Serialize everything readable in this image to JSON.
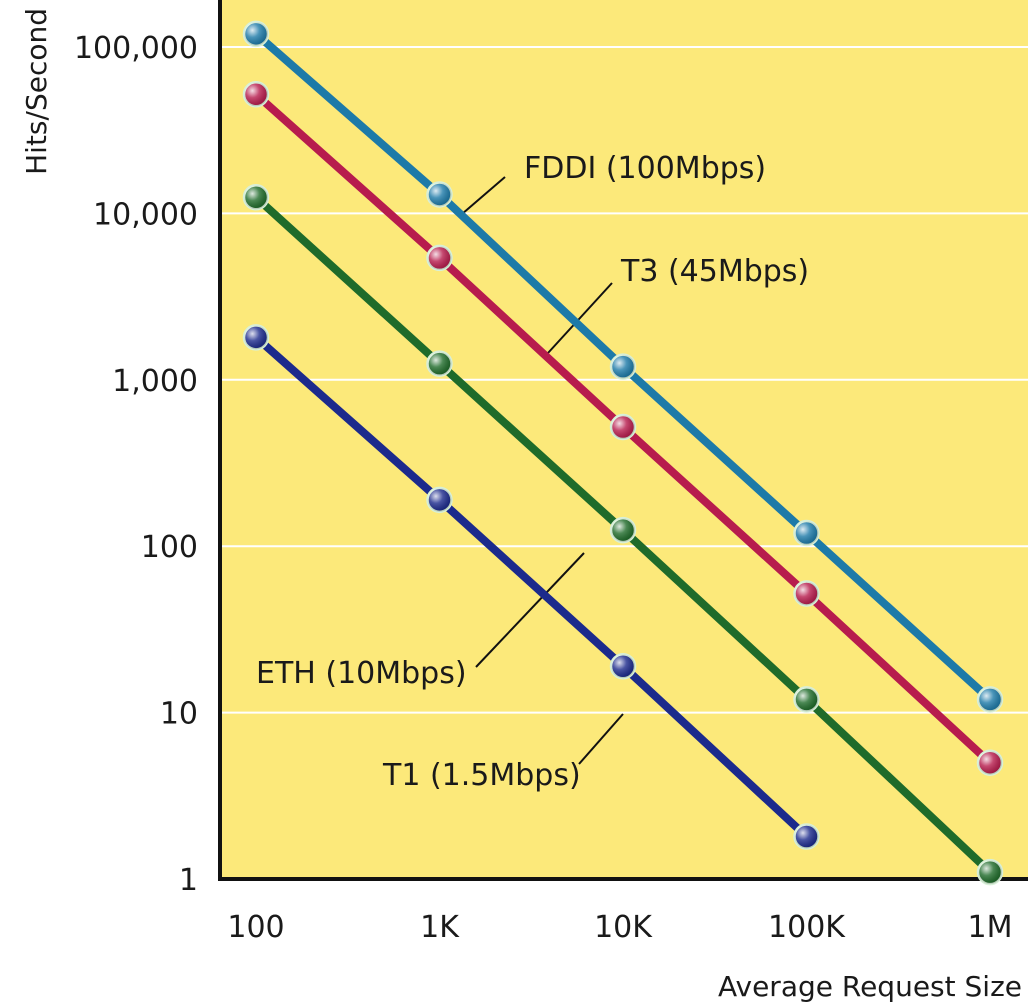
{
  "chart_data": {
    "type": "line",
    "title": "",
    "xlabel": "Average Request Size",
    "ylabel": "Hits/Second",
    "x_scale": "log",
    "y_scale": "log",
    "x": [
      100,
      1000,
      10000,
      100000,
      1000000
    ],
    "x_tick_labels": [
      "100",
      "1K",
      "10K",
      "100K",
      "1M"
    ],
    "y_ticks": [
      1,
      10,
      100,
      1000,
      10000,
      100000
    ],
    "y_tick_labels": [
      "1",
      "10",
      "100",
      "1,000",
      "10,000",
      "100,000"
    ],
    "xlim": [
      100,
      1000000
    ],
    "ylim": [
      1,
      100000
    ],
    "grid": "horizontal",
    "legend": "inline labels",
    "background_color": "#fce97a",
    "series": [
      {
        "name": "FDDI (100Mbps)",
        "color": "#1d7aa8",
        "x": [
          100,
          1000,
          10000,
          100000,
          1000000
        ],
        "values": [
          120000,
          13000,
          1200,
          120,
          12
        ]
      },
      {
        "name": "T3 (45Mbps)",
        "color": "#b71c4d",
        "x": [
          100,
          1000,
          10000,
          100000,
          1000000
        ],
        "values": [
          52000,
          5400,
          520,
          52,
          5
        ]
      },
      {
        "name": "ETH (10Mbps)",
        "color": "#1f6b2a",
        "x": [
          100,
          1000,
          10000,
          100000,
          1000000
        ],
        "values": [
          12500,
          1250,
          125,
          12,
          1.1
        ]
      },
      {
        "name": "T1 (1.5Mbps)",
        "color": "#1c2a8c",
        "x": [
          100,
          1000,
          10000,
          100000
        ],
        "values": [
          1800,
          190,
          19,
          1.8
        ]
      }
    ]
  }
}
